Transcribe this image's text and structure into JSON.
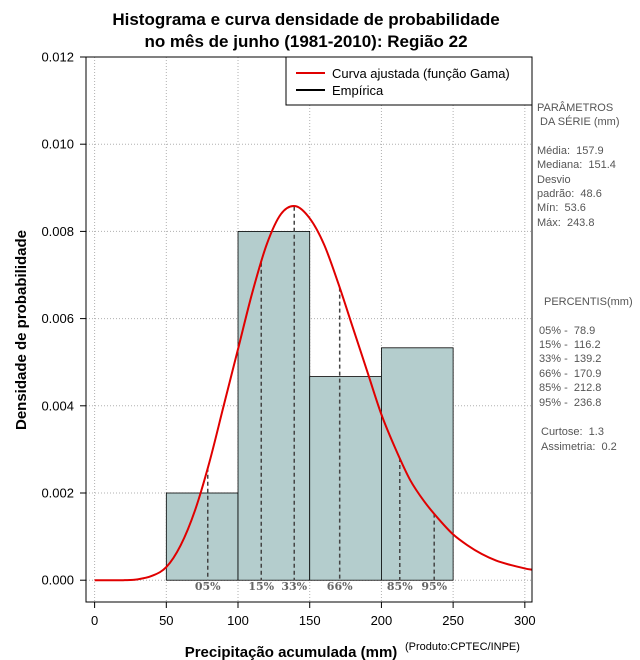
{
  "chart_data": {
    "type": "histogram",
    "title": [
      "Histograma e curva densidade de probabilidade",
      "no mês de junho (1981-2010): Região 22"
    ],
    "xlabel": "Precipitação acumulada (mm)",
    "ylabel": "Densidade de probabilidade",
    "credit": "(Produto:CPTEC/INPE)",
    "xlim": [
      -6,
      305
    ],
    "ylim": [
      -0.0005,
      0.012
    ],
    "xticks": [
      0,
      50,
      100,
      150,
      200,
      250,
      300
    ],
    "xtick_labels": [
      "0",
      "50",
      "100",
      "150",
      "200",
      "250",
      "300"
    ],
    "yticks": [
      0.0,
      0.002,
      0.004,
      0.006,
      0.008,
      0.01,
      0.012
    ],
    "ytick_labels": [
      "0.000",
      "0.002",
      "0.004",
      "0.006",
      "0.008",
      "0.010",
      "0.012"
    ],
    "grid": true,
    "bins": [
      {
        "start": 50,
        "end": 100,
        "density": 0.002
      },
      {
        "start": 100,
        "end": 150,
        "density": 0.008
      },
      {
        "start": 150,
        "end": 200,
        "density": 0.00467
      },
      {
        "start": 200,
        "end": 250,
        "density": 0.00533
      }
    ],
    "gamma_curve": {
      "label": "Curva ajustada (função Gama)",
      "color": "#e00000",
      "x": [
        0,
        20,
        30,
        40,
        50,
        60,
        70,
        80,
        90,
        100,
        110,
        120,
        130,
        140,
        150,
        160,
        170,
        180,
        190,
        200,
        210,
        220,
        230,
        240,
        250,
        260,
        270,
        280,
        290,
        300,
        305
      ],
      "y": [
        0.0,
        0.0,
        2e-05,
        0.0001,
        0.0003,
        0.0008,
        0.0016,
        0.0027,
        0.004,
        0.0053,
        0.0066,
        0.0077,
        0.0084,
        0.00858,
        0.0083,
        0.0077,
        0.0068,
        0.0058,
        0.0048,
        0.0038,
        0.003,
        0.0023,
        0.0018,
        0.0014,
        0.00105,
        0.0008,
        0.0006,
        0.00045,
        0.00035,
        0.00027,
        0.00024
      ]
    },
    "empirical_label": "Empírica",
    "bar_fill": "#b4cdcd",
    "percentiles": [
      {
        "label": "05%",
        "x": 78.9
      },
      {
        "label": "15%",
        "x": 116.2
      },
      {
        "label": "33%",
        "x": 139.2
      },
      {
        "label": "66%",
        "x": 170.9
      },
      {
        "label": "85%",
        "x": 212.8
      },
      {
        "label": "95%",
        "x": 236.8
      }
    ]
  },
  "side_panel": {
    "params_heading": [
      "PARÂMETROS",
      " DA SÉRIE (mm)"
    ],
    "params": [
      "Média:  157.9",
      "Mediana:  151.4",
      "Desvio",
      "padrão:  48.6",
      "Mín:  53.6",
      "Máx:  243.8"
    ],
    "percentis_heading": "PERCENTIS(mm)",
    "percentis": [
      "05% -  78.9",
      "15% -  116.2",
      "33% -  139.2",
      "66% -  170.9",
      "85% -  212.8",
      "95% -  236.8"
    ],
    "stats": [
      "Curtose:  1.3",
      "Assimetria:  0.2"
    ]
  }
}
